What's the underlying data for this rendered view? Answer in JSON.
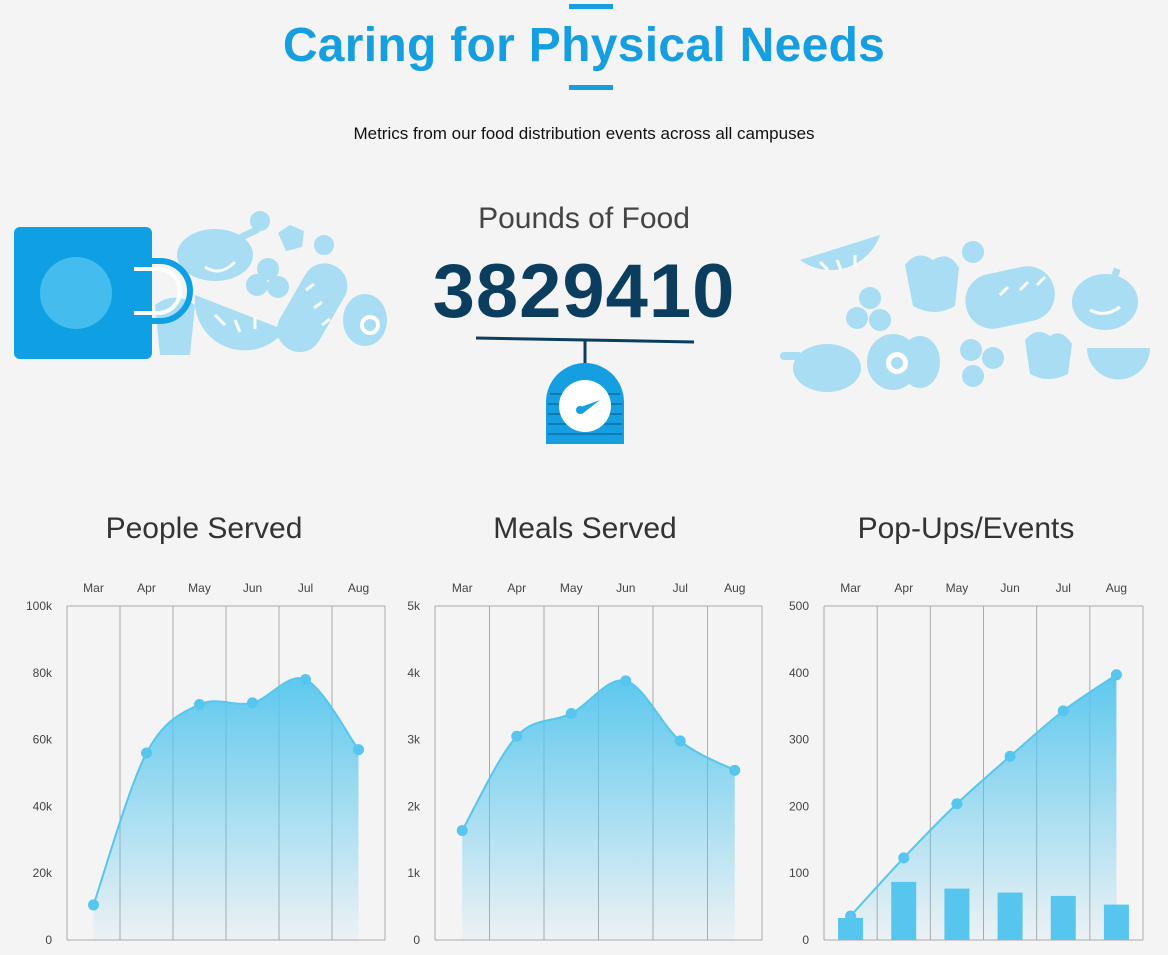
{
  "header": {
    "title": "Caring for Physical Needs",
    "subtitle": "Metrics from our food distribution events across all campuses"
  },
  "stat": {
    "label": "Pounds of Food",
    "value": "3829410"
  },
  "icons": {
    "bag": "grocery-bag-icon",
    "scale": "scale-icon",
    "food": "food-items-icon"
  },
  "colors": {
    "accent": "#169fe0",
    "dark_blue": "#0b3d5e",
    "series": "#56c6ee",
    "food_light": "#a8ddf3"
  },
  "chart_data": [
    {
      "type": "area",
      "title": "People Served",
      "categories": [
        "Mar",
        "Apr",
        "May",
        "Jun",
        "Jul",
        "Aug"
      ],
      "series": [
        {
          "values": [
            10500,
            56000,
            70500,
            71000,
            78000,
            57000
          ]
        }
      ],
      "ylim": [
        0,
        100000
      ],
      "yticks": [
        "0",
        "20k",
        "40k",
        "60k",
        "80k",
        "100k"
      ],
      "grid": true,
      "legend": "none"
    },
    {
      "type": "area",
      "title": "Meals Served",
      "categories": [
        "Mar",
        "Apr",
        "May",
        "Jun",
        "Jul",
        "Aug"
      ],
      "series": [
        {
          "values": [
            1640,
            3050,
            3390,
            3880,
            2980,
            2540
          ]
        }
      ],
      "ylim": [
        0,
        5000
      ],
      "yticks": [
        "0",
        "1k",
        "2k",
        "3k",
        "4k",
        "5k"
      ],
      "grid": true,
      "legend": "none"
    },
    {
      "type": "bar",
      "title": "Pop-Ups/Events",
      "categories": [
        "Mar",
        "Apr",
        "May",
        "Jun",
        "Jul",
        "Aug"
      ],
      "series": [
        {
          "type": "bar",
          "values": [
            33,
            87,
            77,
            71,
            66,
            53
          ]
        },
        {
          "type": "area",
          "values": [
            36,
            123,
            204,
            275,
            343,
            397
          ]
        }
      ],
      "ylim": [
        0,
        500
      ],
      "yticks": [
        "0",
        "100",
        "200",
        "300",
        "400",
        "500"
      ],
      "grid": true,
      "legend": "none"
    }
  ]
}
